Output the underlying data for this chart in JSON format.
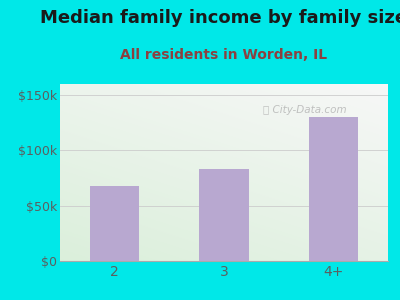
{
  "categories": [
    "2",
    "3",
    "4+"
  ],
  "values": [
    68000,
    83000,
    130000
  ],
  "bar_color": "#b8a8d0",
  "title": "Median family income by family size",
  "subtitle": "All residents in Worden, IL",
  "title_color": "#1a1a1a",
  "subtitle_color": "#8b4040",
  "background_color": "#00e8e8",
  "plot_bg_color_topleft": "#d8eed8",
  "plot_bg_color_white": "#f5f5f5",
  "yticks": [
    0,
    50000,
    100000,
    150000
  ],
  "ytick_labels": [
    "$0",
    "$50k",
    "$100k",
    "$150k"
  ],
  "ylim": [
    0,
    160000
  ],
  "tick_label_color": "#5a6060",
  "watermark": "City-Data.com",
  "title_fontsize": 13,
  "subtitle_fontsize": 10,
  "tick_fontsize": 9
}
